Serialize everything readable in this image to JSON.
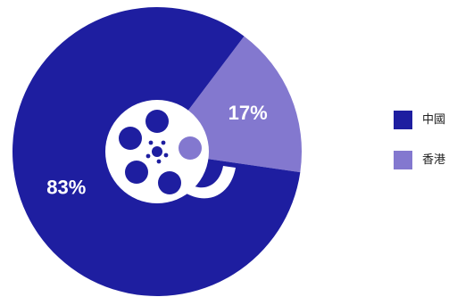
{
  "chart_data": {
    "type": "pie",
    "categories": [
      "中國",
      "香港"
    ],
    "values": [
      83,
      17
    ],
    "data_labels": [
      "83%",
      "17%"
    ],
    "colors": [
      "#1e1ea0",
      "#8378cf"
    ],
    "title": "",
    "legend_position": "right"
  },
  "icons": {
    "center": "film-reel-icon"
  },
  "colors": {
    "icon_fill": "#ffffff",
    "background": "#ffffff"
  }
}
